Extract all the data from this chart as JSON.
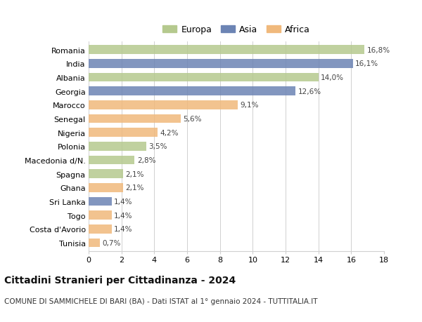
{
  "categories": [
    "Romania",
    "India",
    "Albania",
    "Georgia",
    "Marocco",
    "Senegal",
    "Nigeria",
    "Polonia",
    "Macedonia d/N.",
    "Spagna",
    "Ghana",
    "Sri Lanka",
    "Togo",
    "Costa d'Avorio",
    "Tunisia"
  ],
  "values": [
    16.8,
    16.1,
    14.0,
    12.6,
    9.1,
    5.6,
    4.2,
    3.5,
    2.8,
    2.1,
    2.1,
    1.4,
    1.4,
    1.4,
    0.7
  ],
  "labels": [
    "16,8%",
    "16,1%",
    "14,0%",
    "12,6%",
    "9,1%",
    "5,6%",
    "4,2%",
    "3,5%",
    "2,8%",
    "2,1%",
    "2,1%",
    "1,4%",
    "1,4%",
    "1,4%",
    "0,7%"
  ],
  "continents": [
    "Europa",
    "Asia",
    "Europa",
    "Asia",
    "Africa",
    "Africa",
    "Africa",
    "Europa",
    "Europa",
    "Europa",
    "Africa",
    "Asia",
    "Africa",
    "Africa",
    "Africa"
  ],
  "colors": {
    "Europa": "#b5c98e",
    "Asia": "#6c84b4",
    "Africa": "#f0b97c"
  },
  "legend_order": [
    "Europa",
    "Asia",
    "Africa"
  ],
  "title": "Cittadini Stranieri per Cittadinanza - 2024",
  "subtitle": "COMUNE DI SAMMICHELE DI BARI (BA) - Dati ISTAT al 1° gennaio 2024 - TUTTITALIA.IT",
  "xlim": [
    0,
    18
  ],
  "xticks": [
    0,
    2,
    4,
    6,
    8,
    10,
    12,
    14,
    16,
    18
  ],
  "background_color": "#ffffff",
  "grid_color": "#d0d0d0",
  "bar_height": 0.65,
  "title_fontsize": 10,
  "subtitle_fontsize": 7.5,
  "label_fontsize": 7.5,
  "tick_fontsize": 8,
  "legend_fontsize": 9
}
